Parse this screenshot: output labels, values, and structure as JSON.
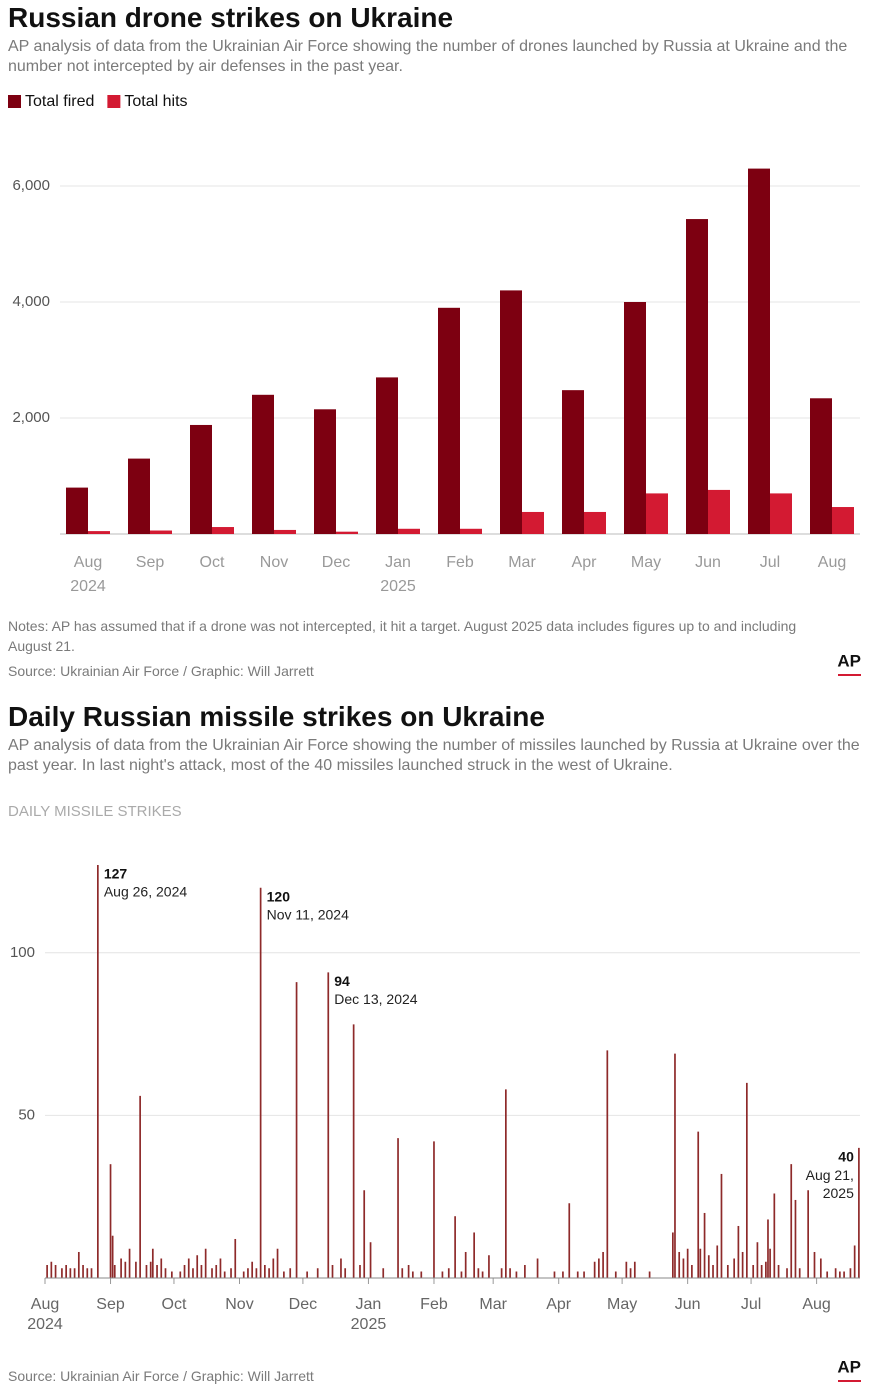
{
  "chart_data": [
    {
      "type": "bar",
      "title": "Russian drone strikes on Ukraine",
      "subtitle": "AP analysis of data from the Ukrainian Air Force showing the number of drones launched by Russia at Ukraine and the number not intercepted by air defenses in the past year.",
      "categories": [
        "Aug 2024",
        "Sep",
        "Oct",
        "Nov",
        "Dec",
        "Jan 2025",
        "Feb",
        "Mar",
        "Apr",
        "May",
        "Jun",
        "Jul",
        "Aug"
      ],
      "series": [
        {
          "name": "Total fired",
          "color": "#7d0011",
          "values": [
            800,
            1300,
            1880,
            2400,
            2150,
            2700,
            3900,
            4200,
            2480,
            4000,
            5430,
            6300,
            2340
          ]
        },
        {
          "name": "Total hits",
          "color": "#d31a32",
          "values": [
            50,
            60,
            120,
            70,
            40,
            90,
            90,
            380,
            380,
            700,
            760,
            700,
            465
          ]
        }
      ],
      "ylim": [
        0,
        6600
      ],
      "yticks": [
        {
          "value": 2000,
          "label": "2,000"
        },
        {
          "value": 4000,
          "label": "4,000"
        },
        {
          "value": 6000,
          "label": "6,000"
        }
      ],
      "grid": true,
      "legend": "top-left",
      "notes": "Notes: AP has assumed that if a drone was not intercepted, it hit a target. August 2025 data includes figures up to and including August 21.",
      "source": "Source: Ukrainian Air Force / Graphic: Will Jarrett",
      "logo": "AP"
    },
    {
      "type": "spike",
      "title": "Daily Russian missile strikes on Ukraine",
      "subtitle": "AP analysis of data from the Ukrainian Air Force showing the number of missiles launched by Russia at Ukraine over the past year. In last night's attack, most of the 40 missiles launched struck in the west of Ukraine.",
      "y_label": "DAILY MISSILE STRIKES",
      "x": [
        "2024-08-02",
        "2024-08-04",
        "2024-08-06",
        "2024-08-09",
        "2024-08-11",
        "2024-08-13",
        "2024-08-15",
        "2024-08-17",
        "2024-08-19",
        "2024-08-21",
        "2024-08-23",
        "2024-08-26",
        "2024-09-01",
        "2024-09-02",
        "2024-09-03",
        "2024-09-06",
        "2024-09-08",
        "2024-09-10",
        "2024-09-13",
        "2024-09-15",
        "2024-09-18",
        "2024-09-20",
        "2024-09-21",
        "2024-09-23",
        "2024-09-25",
        "2024-09-27",
        "2024-09-30",
        "2024-10-04",
        "2024-10-06",
        "2024-10-08",
        "2024-10-10",
        "2024-10-12",
        "2024-10-14",
        "2024-10-16",
        "2024-10-19",
        "2024-10-21",
        "2024-10-23",
        "2024-10-25",
        "2024-10-28",
        "2024-10-30",
        "2024-11-03",
        "2024-11-05",
        "2024-11-07",
        "2024-11-09",
        "2024-11-11",
        "2024-11-13",
        "2024-11-15",
        "2024-11-17",
        "2024-11-19",
        "2024-11-22",
        "2024-11-25",
        "2024-11-28",
        "2024-12-03",
        "2024-12-08",
        "2024-12-13",
        "2024-12-15",
        "2024-12-19",
        "2024-12-21",
        "2024-12-25",
        "2024-12-28",
        "2024-12-30",
        "2025-01-02",
        "2025-01-08",
        "2025-01-15",
        "2025-01-17",
        "2025-01-20",
        "2025-01-22",
        "2025-01-26",
        "2025-02-01",
        "2025-02-05",
        "2025-02-08",
        "2025-02-11",
        "2025-02-14",
        "2025-02-16",
        "2025-02-20",
        "2025-02-22",
        "2025-02-24",
        "2025-02-27",
        "2025-03-05",
        "2025-03-07",
        "2025-03-09",
        "2025-03-12",
        "2025-03-16",
        "2025-03-22",
        "2025-03-30",
        "2025-04-03",
        "2025-04-06",
        "2025-04-10",
        "2025-04-13",
        "2025-04-18",
        "2025-04-20",
        "2025-04-22",
        "2025-04-24",
        "2025-04-28",
        "2025-05-03",
        "2025-05-05",
        "2025-05-07",
        "2025-05-14",
        "2025-05-25",
        "2025-05-26",
        "2025-05-28",
        "2025-05-30",
        "2025-06-01",
        "2025-06-03",
        "2025-06-06",
        "2025-06-07",
        "2025-06-09",
        "2025-06-11",
        "2025-06-13",
        "2025-06-15",
        "2025-06-17",
        "2025-06-20",
        "2025-06-23",
        "2025-06-25",
        "2025-06-27",
        "2025-06-29",
        "2025-07-02",
        "2025-07-04",
        "2025-07-06",
        "2025-07-08",
        "2025-07-09",
        "2025-07-10",
        "2025-07-12",
        "2025-07-14",
        "2025-07-18",
        "2025-07-20",
        "2025-07-22",
        "2025-07-24",
        "2025-07-28",
        "2025-07-31",
        "2025-08-03",
        "2025-08-06",
        "2025-08-10",
        "2025-08-12",
        "2025-08-14",
        "2025-08-17",
        "2025-08-19",
        "2025-08-21"
      ],
      "series": [
        {
          "name": "Daily missile strikes",
          "color": "#8e2a2a",
          "values": [
            4,
            5,
            4,
            3,
            4,
            3,
            3,
            8,
            4,
            3,
            3,
            127,
            35,
            13,
            4,
            6,
            5,
            9,
            5,
            56,
            4,
            5,
            9,
            4,
            6,
            3,
            2,
            2,
            4,
            6,
            3,
            7,
            4,
            9,
            3,
            4,
            6,
            2,
            3,
            12,
            2,
            3,
            5,
            3,
            120,
            4,
            3,
            6,
            9,
            2,
            3,
            91,
            2,
            3,
            94,
            4,
            6,
            3,
            78,
            4,
            27,
            11,
            3,
            43,
            3,
            4,
            2,
            2,
            42,
            2,
            3,
            19,
            2,
            8,
            14,
            3,
            2,
            7,
            3,
            58,
            3,
            2,
            4,
            6,
            2,
            2,
            23,
            2,
            2,
            5,
            6,
            8,
            70,
            2,
            5,
            3,
            5,
            2,
            14,
            69,
            8,
            6,
            9,
            4,
            45,
            9,
            20,
            7,
            4,
            10,
            32,
            4,
            6,
            16,
            8,
            60,
            4,
            11,
            4,
            5,
            18,
            9,
            26,
            4,
            3,
            35,
            24,
            3,
            27,
            8,
            6,
            2,
            3,
            2,
            2,
            3,
            10,
            40
          ]
        }
      ],
      "xlim": [
        "2024-08-01",
        "2025-08-22"
      ],
      "xticks": [
        {
          "value": "2024-08-01",
          "label": "Aug 2024"
        },
        {
          "value": "2024-09-01",
          "label": "Sep"
        },
        {
          "value": "2024-10-01",
          "label": "Oct"
        },
        {
          "value": "2024-11-01",
          "label": "Nov"
        },
        {
          "value": "2024-12-01",
          "label": "Dec"
        },
        {
          "value": "2025-01-01",
          "label": "Jan 2025"
        },
        {
          "value": "2025-02-01",
          "label": "Feb"
        },
        {
          "value": "2025-03-01",
          "label": "Mar"
        },
        {
          "value": "2025-04-01",
          "label": "Apr"
        },
        {
          "value": "2025-05-01",
          "label": "May"
        },
        {
          "value": "2025-06-01",
          "label": "Jun"
        },
        {
          "value": "2025-07-01",
          "label": "Jul"
        },
        {
          "value": "2025-08-01",
          "label": "Aug"
        }
      ],
      "ylim": [
        0,
        127
      ],
      "yticks": [
        50,
        100
      ],
      "grid": true,
      "annotations": [
        {
          "x": "2024-08-26",
          "value": 127,
          "date": "Aug 26, 2024"
        },
        {
          "x": "2024-11-11",
          "value": 120,
          "date": "Nov 11, 2024"
        },
        {
          "x": "2024-12-13",
          "value": 94,
          "date": "Dec 13, 2024"
        },
        {
          "x": "2025-08-21",
          "value": 40,
          "date": "Aug 21, 2025"
        }
      ],
      "source": "Source: Ukrainian Air Force / Graphic: Will Jarrett",
      "logo": "AP"
    }
  ]
}
